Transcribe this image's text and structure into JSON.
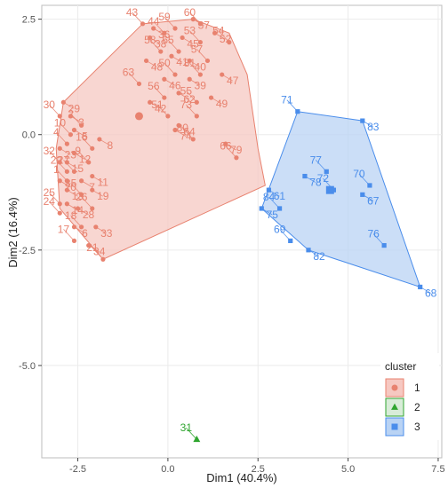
{
  "chart_data": {
    "type": "scatter",
    "title": "",
    "xlabel": "Dim1 (40.4%)",
    "ylabel": "Dim2 (16.4%)",
    "xlim": [
      -3.5,
      7.6
    ],
    "ylim": [
      -7.0,
      2.8
    ],
    "xticks": [
      -2.5,
      0.0,
      2.5,
      5.0,
      7.5
    ],
    "xtick_labels": [
      "-2.5",
      "0.0",
      "2.5",
      "5.0",
      "7.5"
    ],
    "yticks": [
      2.5,
      0.0,
      -2.5,
      -5.0
    ],
    "ytick_labels": [
      "2.5",
      "0.0",
      "-2.5",
      "-5.0"
    ],
    "grid": true,
    "legend": {
      "title": "cluster",
      "position": "bottom-right"
    },
    "clusters": [
      {
        "name": "1",
        "color": "#E8826F",
        "fill": "#F6C8C1",
        "marker": "circle",
        "center": [
          -0.8,
          0.4
        ],
        "hull": [
          [
            -1.8,
            -2.7
          ],
          [
            -3.0,
            -1.6
          ],
          [
            -3.1,
            -0.3
          ],
          [
            -2.9,
            0.7
          ],
          [
            -0.7,
            2.4
          ],
          [
            0.7,
            2.5
          ],
          [
            1.7,
            2.2
          ],
          [
            2.2,
            1.3
          ],
          [
            2.5,
            -0.3
          ],
          [
            2.7,
            -1.1
          ]
        ],
        "points": [
          {
            "label": "43",
            "x": -0.7,
            "y": 2.4
          },
          {
            "label": "36",
            "x": -0.4,
            "y": 2.3
          },
          {
            "label": "59",
            "x": 0.2,
            "y": 2.3
          },
          {
            "label": "37",
            "x": 0.7,
            "y": 2.5
          },
          {
            "label": "60",
            "x": 0.9,
            "y": 2.4
          },
          {
            "label": "52",
            "x": 1.3,
            "y": 2.2
          },
          {
            "label": "54",
            "x": 1.7,
            "y": 2.0
          },
          {
            "label": "38",
            "x": -0.5,
            "y": 2.1
          },
          {
            "label": "44",
            "x": -0.1,
            "y": 2.2
          },
          {
            "label": "45",
            "x": 0.4,
            "y": 2.1
          },
          {
            "label": "53",
            "x": 0.9,
            "y": 2.0
          },
          {
            "label": "48",
            "x": -0.6,
            "y": 1.6
          },
          {
            "label": "58",
            "x": -0.2,
            "y": 1.8
          },
          {
            "label": "41",
            "x": 0.1,
            "y": 1.7
          },
          {
            "label": "65",
            "x": 0.3,
            "y": 1.8
          },
          {
            "label": "40",
            "x": 0.6,
            "y": 1.6
          },
          {
            "label": "57",
            "x": 1.1,
            "y": 1.6
          },
          {
            "label": "47",
            "x": 1.5,
            "y": 1.3
          },
          {
            "label": "63",
            "x": -0.8,
            "y": 1.1
          },
          {
            "label": "46",
            "x": -0.1,
            "y": 1.2
          },
          {
            "label": "50",
            "x": 0.2,
            "y": 1.3
          },
          {
            "label": "39",
            "x": 0.6,
            "y": 1.2
          },
          {
            "label": "81",
            "x": 0.9,
            "y": 1.3
          },
          {
            "label": "42",
            "x": -0.5,
            "y": 0.7
          },
          {
            "label": "56",
            "x": -0.1,
            "y": 0.8
          },
          {
            "label": "62",
            "x": 0.3,
            "y": 0.9
          },
          {
            "label": "55",
            "x": 0.8,
            "y": 0.7
          },
          {
            "label": "49",
            "x": 1.2,
            "y": 0.8
          },
          {
            "label": "51",
            "x": 0.0,
            "y": 0.4
          },
          {
            "label": "64",
            "x": 0.3,
            "y": 0.2
          },
          {
            "label": "73",
            "x": 0.8,
            "y": 0.4
          },
          {
            "label": "74",
            "x": 0.2,
            "y": 0.1
          },
          {
            "label": "80",
            "x": 0.7,
            "y": -0.1
          },
          {
            "label": "79",
            "x": 1.6,
            "y": -0.2
          },
          {
            "label": "66",
            "x": 1.9,
            "y": -0.5
          },
          {
            "label": "29",
            "x": -2.9,
            "y": 0.7
          },
          {
            "label": "30",
            "x": -3.0,
            "y": 0.4
          },
          {
            "label": "3",
            "x": -2.7,
            "y": 0.4
          },
          {
            "label": "10",
            "x": -2.7,
            "y": 0.0
          },
          {
            "label": "5",
            "x": -2.6,
            "y": 0.1
          },
          {
            "label": "2",
            "x": -2.4,
            "y": 0.2
          },
          {
            "label": "8",
            "x": -1.9,
            "y": -0.1
          },
          {
            "label": "16",
            "x": -2.1,
            "y": -0.3
          },
          {
            "label": "23",
            "x": -3.0,
            "y": -0.3
          },
          {
            "label": "4",
            "x": -2.8,
            "y": -0.2
          },
          {
            "label": "12",
            "x": -2.6,
            "y": -0.4
          },
          {
            "label": "9",
            "x": -2.2,
            "y": -0.6
          },
          {
            "label": "11",
            "x": -2.1,
            "y": -0.9
          },
          {
            "label": "32",
            "x": -3.0,
            "y": -0.6
          },
          {
            "label": "15",
            "x": -2.8,
            "y": -0.6
          },
          {
            "label": "27",
            "x": -2.6,
            "y": -0.8
          },
          {
            "label": "7",
            "x": -2.4,
            "y": -1.0
          },
          {
            "label": "22",
            "x": -2.8,
            "y": -0.8
          },
          {
            "label": "20",
            "x": -3.0,
            "y": -1.0
          },
          {
            "label": "1",
            "x": -2.8,
            "y": -1.0
          },
          {
            "label": "19",
            "x": -2.1,
            "y": -1.2
          },
          {
            "label": "35",
            "x": -2.4,
            "y": -1.3
          },
          {
            "label": "13",
            "x": -2.8,
            "y": -1.2
          },
          {
            "label": "26",
            "x": -2.1,
            "y": -1.6
          },
          {
            "label": "28",
            "x": -2.5,
            "y": -1.6
          },
          {
            "label": "25",
            "x": -3.0,
            "y": -1.5
          },
          {
            "label": "14",
            "x": -2.8,
            "y": -1.5
          },
          {
            "label": "18",
            "x": -2.4,
            "y": -2.0
          },
          {
            "label": "33",
            "x": -2.0,
            "y": -2.0
          },
          {
            "label": "24",
            "x": -3.0,
            "y": -1.7
          },
          {
            "label": "6",
            "x": -2.6,
            "y": -2.0
          },
          {
            "label": "17",
            "x": -2.6,
            "y": -2.3
          },
          {
            "label": "34",
            "x": -2.2,
            "y": -2.4
          },
          {
            "label": "21",
            "x": -1.8,
            "y": -2.7
          }
        ]
      },
      {
        "name": "2",
        "color": "#2FA52F",
        "marker": "triangle",
        "center": [
          0.8,
          -6.6
        ],
        "points": [
          {
            "label": "31",
            "x": 0.8,
            "y": -6.6
          }
        ]
      },
      {
        "name": "3",
        "color": "#4A8DEB",
        "fill": "#B9D3F4",
        "marker": "square",
        "center": [
          4.5,
          -1.2
        ],
        "hull": [
          [
            3.6,
            0.5
          ],
          [
            5.4,
            0.3
          ],
          [
            7.0,
            -3.3
          ],
          [
            3.9,
            -2.5
          ],
          [
            2.6,
            -1.6
          ]
        ],
        "points": [
          {
            "label": "71",
            "x": 3.6,
            "y": 0.5
          },
          {
            "label": "83",
            "x": 5.4,
            "y": 0.3
          },
          {
            "label": "77",
            "x": 4.4,
            "y": -0.8
          },
          {
            "label": "78",
            "x": 3.8,
            "y": -0.9
          },
          {
            "label": "70",
            "x": 5.6,
            "y": -1.1
          },
          {
            "label": "61",
            "x": 2.8,
            "y": -1.2
          },
          {
            "label": "72",
            "x": 4.6,
            "y": -1.2
          },
          {
            "label": "67",
            "x": 5.4,
            "y": -1.3
          },
          {
            "label": "84",
            "x": 3.1,
            "y": -1.6
          },
          {
            "label": "75",
            "x": 2.6,
            "y": -1.6
          },
          {
            "label": "69",
            "x": 3.4,
            "y": -2.3
          },
          {
            "label": "82",
            "x": 3.9,
            "y": -2.5
          },
          {
            "label": "76",
            "x": 6.0,
            "y": -2.4
          },
          {
            "label": "68",
            "x": 7.0,
            "y": -3.3
          }
        ]
      }
    ]
  }
}
